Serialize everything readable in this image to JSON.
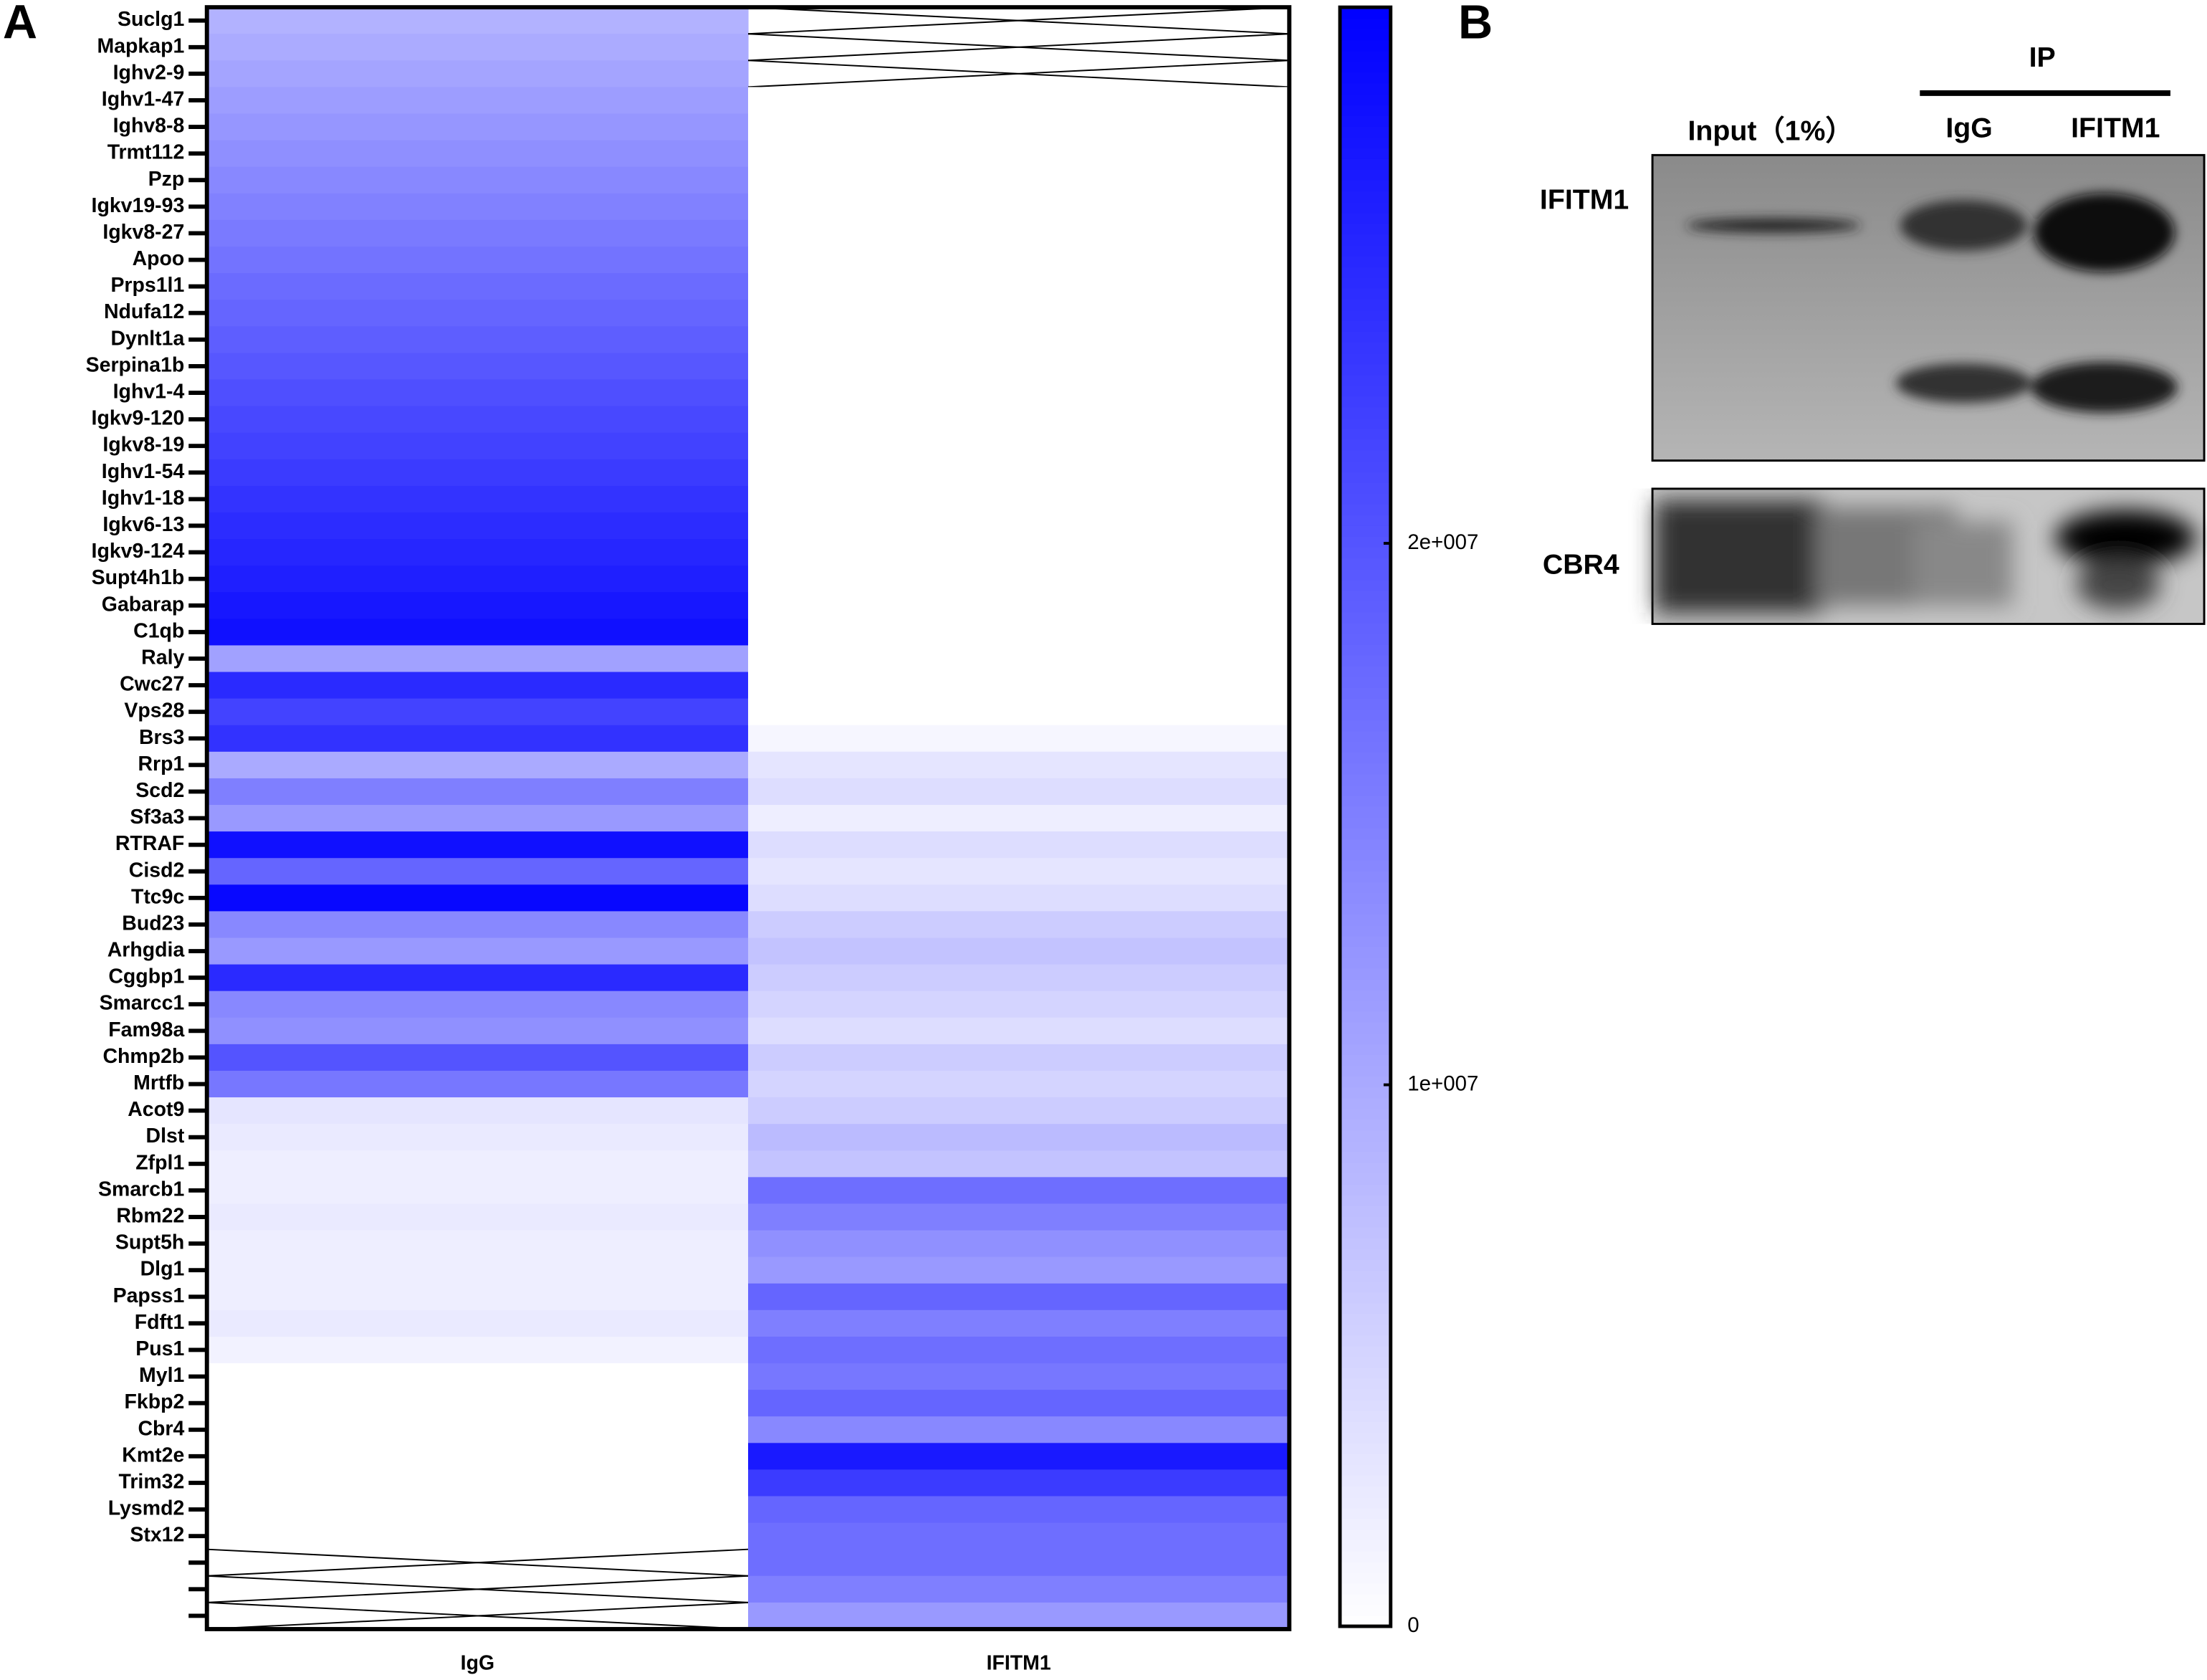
{
  "chart_data": {
    "type": "heatmap",
    "categories": [
      "Suclg1",
      "Mapkap1",
      "Ighv2-9",
      "Ighv1-47",
      "Ighv8-8",
      "Trmt112",
      "Pzp",
      "Igkv19-93",
      "Igkv8-27",
      "Apoo",
      "Prps1l1",
      "Ndufa12",
      "Dynlt1a",
      "Serpina1b",
      "Ighv1-4",
      "Igkv9-120",
      "Igkv8-19",
      "Ighv1-54",
      "Ighv1-18",
      "Igkv6-13",
      "Igkv9-124",
      "Supt4h1b",
      "Gabarap",
      "C1qb",
      "Raly",
      "Cwc27",
      "Vps28",
      "Brs3",
      "Rrp1",
      "Scd2",
      "Sf3a3",
      "RTRAF",
      "Cisd2",
      "Ttc9c",
      "Bud23",
      "Arhgdia",
      "Cggbp1",
      "Smarcc1",
      "Fam98a",
      "Chmp2b",
      "Mrtfb",
      "Acot9",
      "Dlst",
      "Zfpl1",
      "Smarcb1",
      "Rbm22",
      "Supt5h",
      "Dlg1",
      "Papss1",
      "Fdft1",
      "Pus1",
      "Myl1",
      "Fkbp2",
      "Cbr4",
      "Kmt2e",
      "Trim32",
      "Lysmd2",
      "Stx12",
      null,
      null,
      null
    ],
    "series": [
      {
        "name": "IgG",
        "values": [
          9000000,
          9800000,
          10700000,
          11500000,
          12300000,
          13100000,
          14000000,
          14800000,
          15600000,
          16400000,
          17300000,
          18100000,
          18900000,
          19700000,
          20600000,
          21400000,
          22200000,
          23000000,
          23900000,
          24700000,
          25500000,
          26300000,
          27200000,
          28000000,
          11000000,
          25000000,
          22000000,
          24000000,
          10000000,
          15000000,
          12000000,
          28000000,
          18000000,
          29000000,
          14000000,
          12000000,
          25000000,
          14000000,
          13000000,
          20000000,
          16000000,
          3000000,
          2500000,
          2000000,
          2000000,
          2500000,
          2000000,
          2000000,
          2000000,
          2500000,
          1500000,
          0,
          0,
          0,
          0,
          0,
          0,
          0,
          null,
          null,
          null
        ]
      },
      {
        "name": "IFITM1",
        "values": [
          null,
          null,
          null,
          0,
          0,
          0,
          0,
          0,
          0,
          0,
          0,
          0,
          0,
          0,
          0,
          0,
          0,
          0,
          0,
          0,
          0,
          0,
          0,
          0,
          0,
          0,
          0,
          1000000,
          3000000,
          4000000,
          2000000,
          4000000,
          3000000,
          4000000,
          6000000,
          7000000,
          6000000,
          5000000,
          4000000,
          6000000,
          5000000,
          6000000,
          8000000,
          7000000,
          17000000,
          15000000,
          13000000,
          12000000,
          18000000,
          15000000,
          17000000,
          16000000,
          18000000,
          14000000,
          27000000,
          23000000,
          18000000,
          17000000,
          17000000,
          15000000,
          12000000
        ]
      }
    ],
    "colorscale": [
      "#ffffff",
      "#0000ff"
    ],
    "clim": [
      0,
      29900000
    ],
    "cticks": [
      0,
      {
        "value": 10000000,
        "label": "1e+007"
      },
      {
        "value": 20000000,
        "label": "2e+007"
      }
    ]
  },
  "panels": [
    "A",
    "B"
  ],
  "blot": {
    "ip_label": "IP",
    "lanes": [
      "Input（1%）",
      "IgG",
      "IFITM1"
    ],
    "rows": [
      "IFITM1",
      "CBR4"
    ]
  }
}
